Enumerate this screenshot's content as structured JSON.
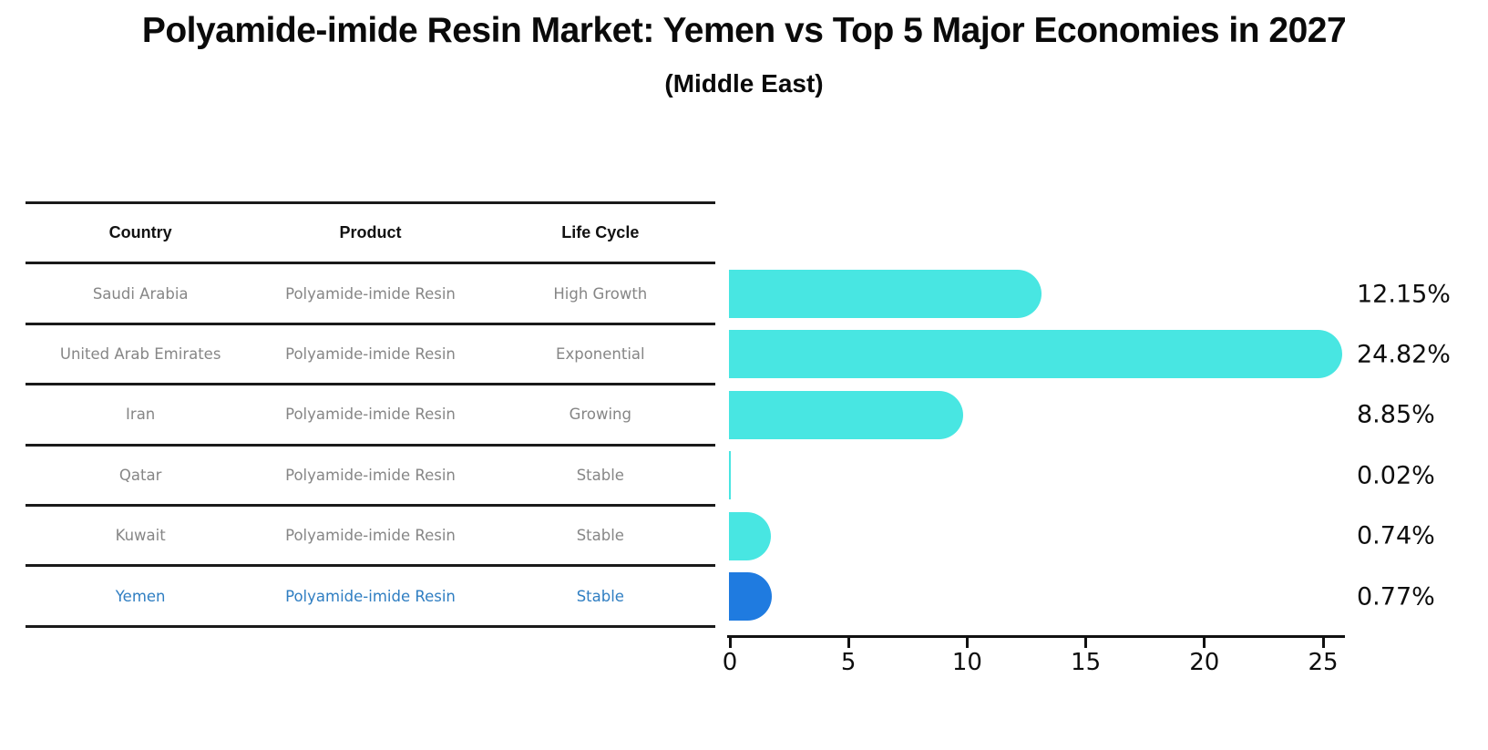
{
  "title": "Polyamide-imide Resin Market: Yemen vs Top 5 Major Economies in 2027",
  "subtitle": "(Middle East)",
  "colors": {
    "bar_default": "#48E6E2",
    "bar_highlight": "#1F7BE0",
    "highlight_text": "#2F7EC2",
    "table_text": "#868686",
    "header_text": "#111111",
    "axis_text": "#0d0d0d"
  },
  "table": {
    "headers": {
      "country": "Country",
      "product": "Product",
      "life_cycle": "Life Cycle"
    },
    "rows": [
      {
        "country": "Saudi Arabia",
        "product": "Polyamide-imide Resin",
        "life_cycle": "High Growth",
        "highlight": false
      },
      {
        "country": "United Arab Emirates",
        "product": "Polyamide-imide Resin",
        "life_cycle": "Exponential",
        "highlight": false
      },
      {
        "country": "Iran",
        "product": "Polyamide-imide Resin",
        "life_cycle": "Growing",
        "highlight": false
      },
      {
        "country": "Qatar",
        "product": "Polyamide-imide Resin",
        "life_cycle": "Stable",
        "highlight": false
      },
      {
        "country": "Kuwait",
        "product": "Polyamide-imide Resin",
        "life_cycle": "Stable",
        "highlight": false
      },
      {
        "country": "Yemen",
        "product": "Polyamide-imide Resin",
        "life_cycle": "Stable",
        "highlight": true
      }
    ]
  },
  "chart_data": {
    "type": "bar",
    "orientation": "horizontal",
    "title": "Polyamide-imide Resin Market: Yemen vs Top 5 Major Economies in 2027",
    "subtitle": "(Middle East)",
    "categories": [
      "Saudi Arabia",
      "United Arab Emirates",
      "Iran",
      "Qatar",
      "Kuwait",
      "Yemen"
    ],
    "values": [
      12.15,
      24.82,
      8.85,
      0.02,
      0.74,
      0.77
    ],
    "value_labels": [
      "12.15%",
      "24.82%",
      "8.85%",
      "0.02%",
      "0.74%",
      "0.77%"
    ],
    "unit": "%",
    "highlight_category": "Yemen",
    "highlight_index": 5,
    "x_ticks": [
      0,
      5,
      10,
      15,
      20,
      25
    ],
    "xlim": [
      0,
      26
    ],
    "xlabel": "",
    "ylabel": "",
    "grid": false,
    "legend": false
  }
}
